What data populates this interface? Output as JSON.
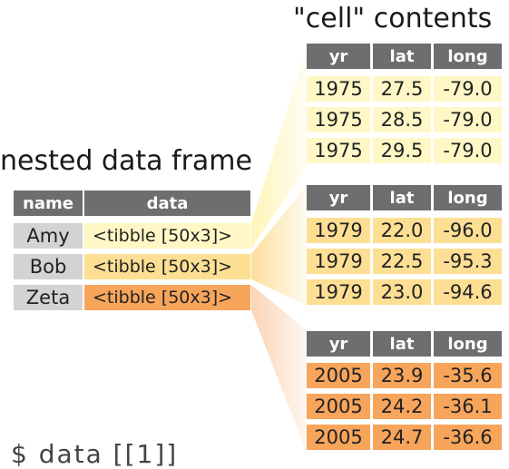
{
  "titles": {
    "nested": "nested data frame",
    "cells": "\"cell\" contents"
  },
  "colors": {
    "header_bg": "#6e6e6e",
    "name_bg": "#d3d3d3",
    "amy": "#fff8c6",
    "bob": "#fddf94",
    "zeta": "#f8a55c"
  },
  "nested_table": {
    "headers": [
      "name",
      "data"
    ],
    "rows": [
      {
        "name": "Amy",
        "data": "<tibble [50x3]>"
      },
      {
        "name": "Bob",
        "data": "<tibble [50x3]>"
      },
      {
        "name": "Zeta",
        "data": "<tibble [50x3]>"
      }
    ]
  },
  "cell_tables": [
    {
      "headers": [
        "yr",
        "lat",
        "long"
      ],
      "rows": [
        [
          "1975",
          "27.5",
          "-79.0"
        ],
        [
          "1975",
          "28.5",
          "-79.0"
        ],
        [
          "1975",
          "29.5",
          "-79.0"
        ]
      ]
    },
    {
      "headers": [
        "yr",
        "lat",
        "long"
      ],
      "rows": [
        [
          "1979",
          "22.0",
          "-96.0"
        ],
        [
          "1979",
          "22.5",
          "-95.3"
        ],
        [
          "1979",
          "23.0",
          "-94.6"
        ]
      ]
    },
    {
      "headers": [
        "yr",
        "lat",
        "long"
      ],
      "rows": [
        [
          "2005",
          "23.9",
          "-35.6"
        ],
        [
          "2005",
          "24.2",
          "-36.1"
        ],
        [
          "2005",
          "24.7",
          "-36.6"
        ]
      ]
    }
  ],
  "bottom_code": "$ data [[1]]"
}
